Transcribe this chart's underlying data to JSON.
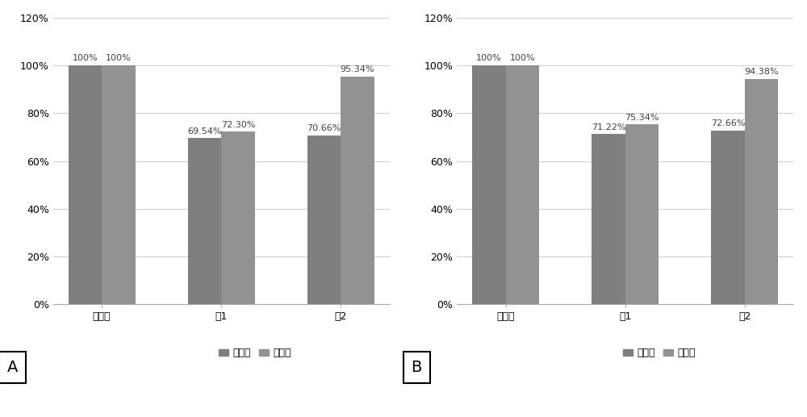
{
  "chart_A": {
    "categories": [
      "对照组",
      "组1",
      "组2"
    ],
    "series1": [
      1.0,
      0.6954,
      0.7066
    ],
    "series2": [
      1.0,
      0.723,
      0.9534
    ],
    "labels1": [
      "100%",
      "69.54%",
      "70.66%"
    ],
    "labels2": [
      "100%",
      "72.30%",
      "95.34%"
    ],
    "label": "A"
  },
  "chart_B": {
    "categories": [
      "对照组",
      "组1",
      "组2"
    ],
    "series1": [
      1.0,
      0.7122,
      0.7266
    ],
    "series2": [
      1.0,
      0.7534,
      0.9438
    ],
    "labels1": [
      "100%",
      "71.22%",
      "72.66%"
    ],
    "labels2": [
      "100%",
      "75.34%",
      "94.38%"
    ],
    "label": "B"
  },
  "legend_labels": [
    "保存后",
    "夏苏后"
  ],
  "bar_color1": "#7f7f7f",
  "bar_color2": "#929292",
  "ylim": [
    0,
    1.2
  ],
  "yticks": [
    0,
    0.2,
    0.4,
    0.6,
    0.8,
    1.0,
    1.2
  ],
  "ytick_labels": [
    "0%",
    "20%",
    "40%",
    "60%",
    "80%",
    "100%",
    "120%"
  ],
  "bar_width": 0.28,
  "figsize": [
    10.0,
    5.17
  ],
  "dpi": 100,
  "label_fontsize": 8,
  "tick_fontsize": 9,
  "legend_fontsize": 9,
  "annotation_color": "#404040"
}
